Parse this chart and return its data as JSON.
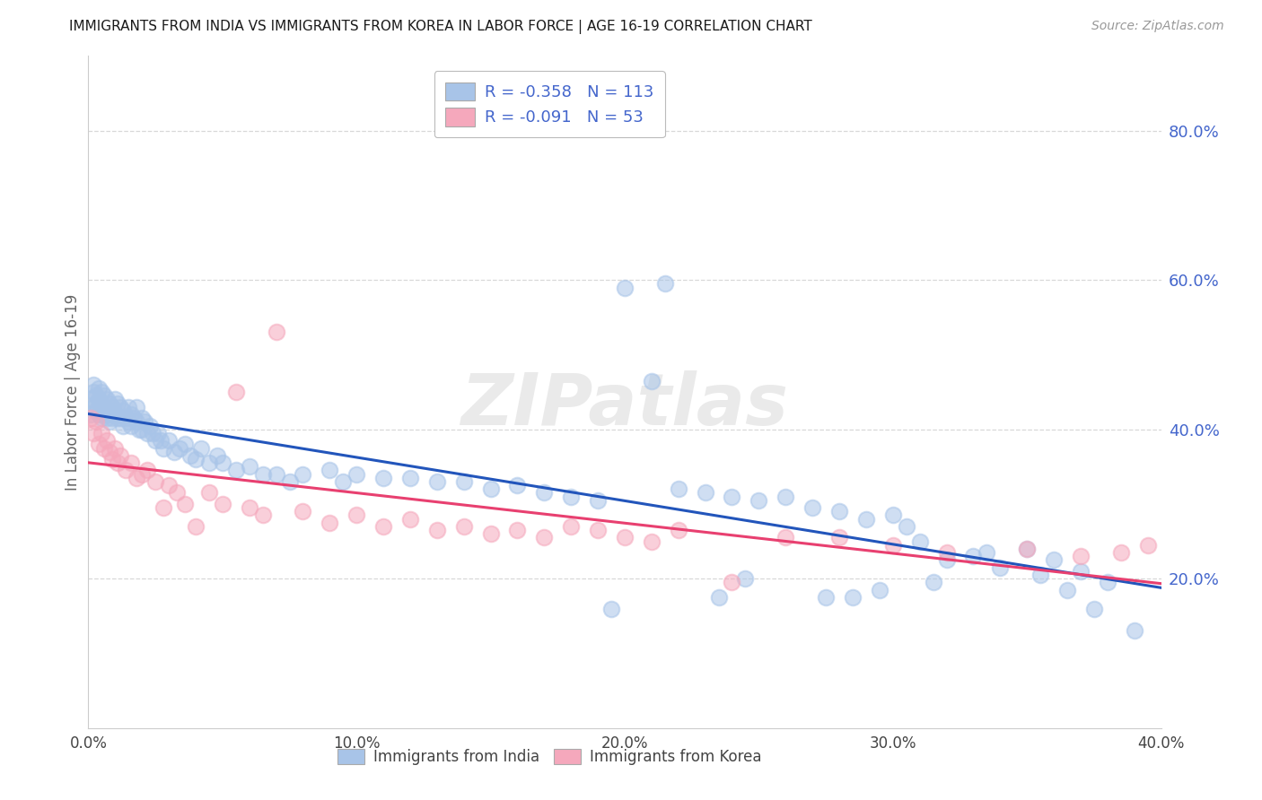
{
  "title": "IMMIGRANTS FROM INDIA VS IMMIGRANTS FROM KOREA IN LABOR FORCE | AGE 16-19 CORRELATION CHART",
  "source": "Source: ZipAtlas.com",
  "ylabel": "In Labor Force | Age 16-19",
  "xlim": [
    0.0,
    0.4
  ],
  "ylim": [
    0.0,
    0.9
  ],
  "xticks": [
    0.0,
    0.1,
    0.2,
    0.3,
    0.4
  ],
  "xtick_labels": [
    "0.0%",
    "10.0%",
    "20.0%",
    "30.0%",
    "40.0%"
  ],
  "yticks_right": [
    0.2,
    0.4,
    0.6,
    0.8
  ],
  "ytick_labels_right": [
    "20.0%",
    "40.0%",
    "60.0%",
    "80.0%"
  ],
  "india_color": "#a8c4e8",
  "korea_color": "#f5a8bc",
  "india_line_color": "#2255bb",
  "korea_line_color": "#e84070",
  "india_R": -0.358,
  "india_N": 113,
  "korea_R": -0.091,
  "korea_N": 53,
  "watermark": "ZIPatlas",
  "background_color": "#ffffff",
  "grid_color": "#d8d8d8",
  "right_tick_color": "#4466cc",
  "legend_text_color": "#4466cc",
  "india_scatter_x": [
    0.001,
    0.001,
    0.002,
    0.002,
    0.002,
    0.003,
    0.003,
    0.003,
    0.004,
    0.004,
    0.004,
    0.005,
    0.005,
    0.005,
    0.006,
    0.006,
    0.006,
    0.007,
    0.007,
    0.007,
    0.008,
    0.008,
    0.008,
    0.009,
    0.009,
    0.01,
    0.01,
    0.011,
    0.011,
    0.012,
    0.012,
    0.013,
    0.013,
    0.014,
    0.015,
    0.015,
    0.016,
    0.016,
    0.017,
    0.018,
    0.018,
    0.019,
    0.02,
    0.02,
    0.021,
    0.022,
    0.023,
    0.024,
    0.025,
    0.026,
    0.027,
    0.028,
    0.03,
    0.032,
    0.034,
    0.036,
    0.038,
    0.04,
    0.042,
    0.045,
    0.048,
    0.05,
    0.055,
    0.06,
    0.065,
    0.07,
    0.075,
    0.08,
    0.09,
    0.095,
    0.1,
    0.11,
    0.12,
    0.13,
    0.14,
    0.15,
    0.16,
    0.17,
    0.18,
    0.19,
    0.2,
    0.21,
    0.22,
    0.23,
    0.24,
    0.25,
    0.26,
    0.27,
    0.28,
    0.29,
    0.3,
    0.31,
    0.32,
    0.33,
    0.34,
    0.35,
    0.36,
    0.37,
    0.38,
    0.39,
    0.195,
    0.215,
    0.235,
    0.245,
    0.275,
    0.285,
    0.295,
    0.305,
    0.315,
    0.335,
    0.355,
    0.365,
    0.375
  ],
  "india_scatter_y": [
    0.44,
    0.42,
    0.45,
    0.43,
    0.46,
    0.445,
    0.435,
    0.425,
    0.455,
    0.44,
    0.42,
    0.45,
    0.43,
    0.415,
    0.445,
    0.43,
    0.42,
    0.44,
    0.425,
    0.415,
    0.435,
    0.42,
    0.41,
    0.43,
    0.415,
    0.44,
    0.42,
    0.435,
    0.415,
    0.43,
    0.415,
    0.425,
    0.405,
    0.415,
    0.43,
    0.41,
    0.42,
    0.405,
    0.415,
    0.43,
    0.41,
    0.4,
    0.415,
    0.4,
    0.41,
    0.395,
    0.405,
    0.395,
    0.385,
    0.395,
    0.385,
    0.375,
    0.385,
    0.37,
    0.375,
    0.38,
    0.365,
    0.36,
    0.375,
    0.355,
    0.365,
    0.355,
    0.345,
    0.35,
    0.34,
    0.34,
    0.33,
    0.34,
    0.345,
    0.33,
    0.34,
    0.335,
    0.335,
    0.33,
    0.33,
    0.32,
    0.325,
    0.315,
    0.31,
    0.305,
    0.59,
    0.465,
    0.32,
    0.315,
    0.31,
    0.305,
    0.31,
    0.295,
    0.29,
    0.28,
    0.285,
    0.25,
    0.225,
    0.23,
    0.215,
    0.24,
    0.225,
    0.21,
    0.195,
    0.13,
    0.16,
    0.595,
    0.175,
    0.2,
    0.175,
    0.175,
    0.185,
    0.27,
    0.195,
    0.235,
    0.205,
    0.185,
    0.16
  ],
  "korea_scatter_x": [
    0.001,
    0.002,
    0.003,
    0.004,
    0.005,
    0.006,
    0.007,
    0.008,
    0.009,
    0.01,
    0.011,
    0.012,
    0.014,
    0.016,
    0.018,
    0.02,
    0.022,
    0.025,
    0.028,
    0.03,
    0.033,
    0.036,
    0.04,
    0.045,
    0.05,
    0.055,
    0.06,
    0.065,
    0.07,
    0.08,
    0.09,
    0.1,
    0.11,
    0.12,
    0.13,
    0.14,
    0.15,
    0.16,
    0.17,
    0.18,
    0.19,
    0.2,
    0.21,
    0.22,
    0.24,
    0.26,
    0.28,
    0.3,
    0.32,
    0.35,
    0.37,
    0.385,
    0.395
  ],
  "korea_scatter_y": [
    0.415,
    0.395,
    0.41,
    0.38,
    0.395,
    0.375,
    0.385,
    0.37,
    0.36,
    0.375,
    0.355,
    0.365,
    0.345,
    0.355,
    0.335,
    0.34,
    0.345,
    0.33,
    0.295,
    0.325,
    0.315,
    0.3,
    0.27,
    0.315,
    0.3,
    0.45,
    0.295,
    0.285,
    0.53,
    0.29,
    0.275,
    0.285,
    0.27,
    0.28,
    0.265,
    0.27,
    0.26,
    0.265,
    0.255,
    0.27,
    0.265,
    0.255,
    0.25,
    0.265,
    0.195,
    0.255,
    0.255,
    0.245,
    0.235,
    0.24,
    0.23,
    0.235,
    0.245
  ]
}
